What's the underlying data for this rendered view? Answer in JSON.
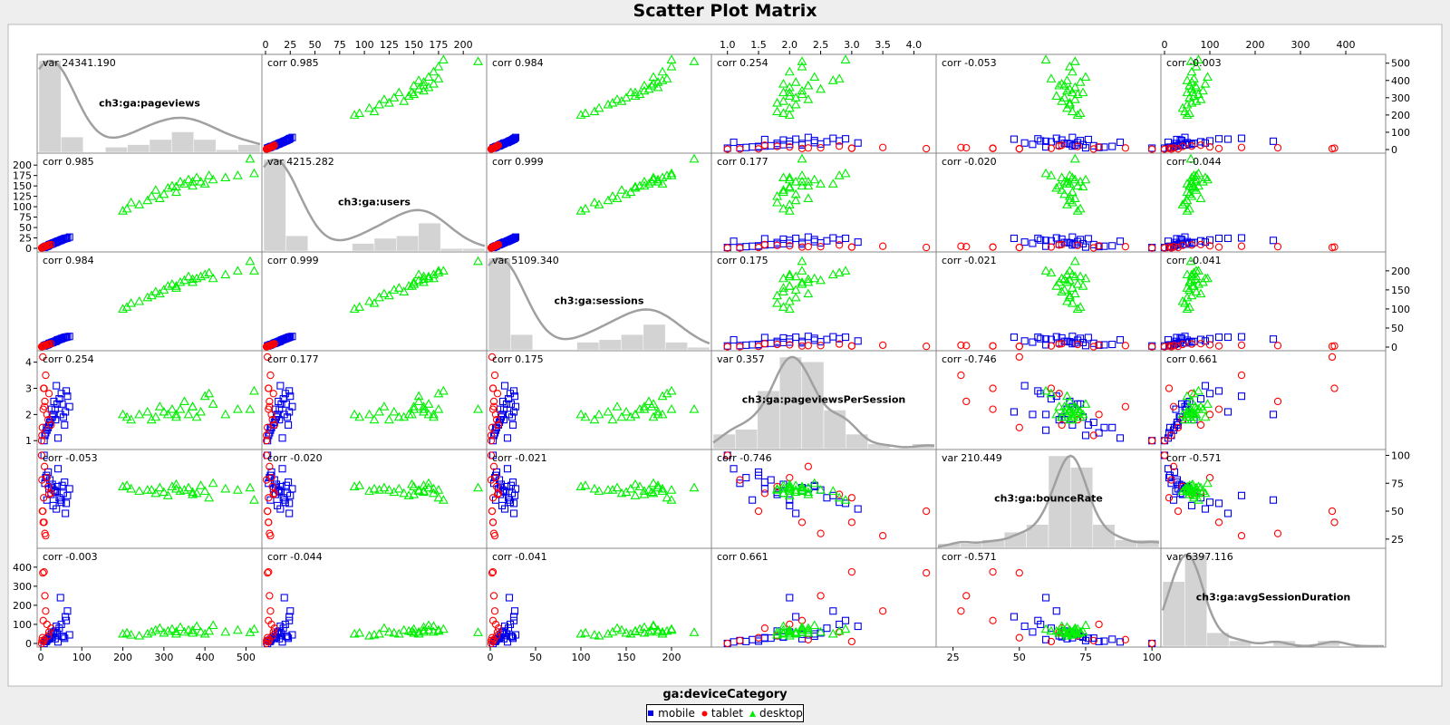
{
  "title": "Scatter Plot Matrix",
  "legend": {
    "title": "ga:deviceCategory",
    "items": [
      {
        "label": "mobile",
        "color": "#0000ee",
        "marker": "square"
      },
      {
        "label": "tablet",
        "color": "#ff0000",
        "marker": "circle"
      },
      {
        "label": "desktop",
        "color": "#00ee00",
        "marker": "triangle"
      }
    ]
  },
  "chart_data": {
    "type": "scatter",
    "title": "Scatter Plot Matrix",
    "variables": [
      {
        "name": "ch3:ga:pageviews",
        "range": [
          0,
          530
        ],
        "ticks": [
          0,
          100,
          200,
          300,
          400,
          500
        ],
        "var": "var 24341.190"
      },
      {
        "name": "ch3:ga:users",
        "range": [
          0,
          220
        ],
        "ticks": [
          0,
          25,
          50,
          75,
          100,
          125,
          150,
          175,
          200
        ],
        "var": "var 4215.282"
      },
      {
        "name": "ch3:ga:sessions",
        "range": [
          0,
          240
        ],
        "ticks": [
          0,
          50,
          100,
          150,
          200
        ],
        "var": "var 5109.340"
      },
      {
        "name": "ch3:ga:pageviewsPerSession",
        "range": [
          0.8,
          4.3
        ],
        "ticks": [
          1,
          2,
          3,
          4
        ],
        "ticks_top": [
          "1.0",
          "1.5",
          "2.0",
          "2.5",
          "3.0",
          "3.5",
          "4.0"
        ],
        "var": "var 0.357"
      },
      {
        "name": "ch3:ga:bounceRate",
        "range": [
          20,
          102
        ],
        "ticks": [
          25,
          50,
          75,
          100
        ],
        "var": "var 210.449"
      },
      {
        "name": "ch3:ga:avgSessionDuration",
        "range": [
          0,
          480
        ],
        "ticks": [
          0,
          100,
          200,
          300,
          400
        ],
        "var": "var 6397.116"
      }
    ],
    "correlations": [
      [
        "",
        "corr 0.985",
        "corr 0.984",
        "corr 0.254",
        "corr -0.053",
        "corr -0.003"
      ],
      [
        "corr 0.985",
        "",
        "corr 0.999",
        "corr 0.177",
        "corr -0.020",
        "corr -0.044"
      ],
      [
        "corr 0.984",
        "corr 0.999",
        "",
        "corr 0.175",
        "corr -0.021",
        "corr -0.041"
      ],
      [
        "corr 0.254",
        "corr 0.177",
        "corr 0.175",
        "",
        "corr -0.746",
        "corr 0.661"
      ],
      [
        "corr -0.053",
        "corr -0.020",
        "corr -0.021",
        "corr -0.746",
        "",
        "corr -0.571"
      ],
      [
        "corr -0.003",
        "corr -0.044",
        "corr -0.041",
        "corr 0.661",
        "corr -0.571",
        ""
      ]
    ],
    "groups": [
      {
        "name": "mobile",
        "color": "#0000ee",
        "marker": "square",
        "points": [
          [
            15,
            5,
            6,
            1.4,
            60,
            20
          ],
          [
            20,
            8,
            9,
            1.6,
            70,
            30
          ],
          [
            25,
            10,
            11,
            1.8,
            65,
            40
          ],
          [
            30,
            12,
            13,
            2.0,
            55,
            60
          ],
          [
            35,
            14,
            15,
            2.2,
            68,
            25
          ],
          [
            40,
            16,
            18,
            2.4,
            72,
            50
          ],
          [
            45,
            18,
            20,
            2.6,
            62,
            80
          ],
          [
            50,
            20,
            22,
            2.8,
            58,
            100
          ],
          [
            55,
            22,
            24,
            1.9,
            66,
            35
          ],
          [
            60,
            24,
            26,
            2.1,
            48,
            140
          ],
          [
            65,
            25,
            27,
            2.7,
            64,
            170
          ],
          [
            70,
            27,
            28,
            2.3,
            70,
            45
          ],
          [
            10,
            3,
            4,
            1.2,
            75,
            15
          ],
          [
            12,
            4,
            5,
            1.3,
            80,
            10
          ],
          [
            18,
            6,
            7,
            1.5,
            85,
            22
          ],
          [
            22,
            9,
            10,
            1.7,
            78,
            28
          ],
          [
            28,
            11,
            12,
            1.9,
            74,
            33
          ],
          [
            32,
            13,
            14,
            2.5,
            69,
            55
          ],
          [
            38,
            15,
            16,
            3.1,
            52,
            90
          ],
          [
            42,
            17,
            19,
            1.1,
            88,
            8
          ],
          [
            8,
            2,
            3,
            1.0,
            100,
            0
          ],
          [
            48,
            19,
            21,
            2.0,
            60,
            240
          ],
          [
            14,
            5,
            6,
            1.5,
            82,
            12
          ],
          [
            26,
            10,
            11,
            2.2,
            71,
            48
          ],
          [
            36,
            14,
            15,
            1.8,
            67,
            65
          ],
          [
            52,
            21,
            23,
            2.4,
            73,
            38
          ],
          [
            58,
            23,
            25,
            1.6,
            76,
            27
          ],
          [
            62,
            24,
            26,
            2.9,
            57,
            120
          ]
        ]
      },
      {
        "name": "tablet",
        "color": "#ff0000",
        "marker": "circle",
        "points": [
          [
            2,
            1,
            1,
            1.0,
            100,
            0
          ],
          [
            5,
            2,
            2,
            4.2,
            50,
            370
          ],
          [
            8,
            3,
            3,
            3.0,
            40,
            375
          ],
          [
            10,
            4,
            4,
            2.5,
            30,
            250
          ],
          [
            12,
            5,
            5,
            3.5,
            28,
            170
          ],
          [
            15,
            6,
            6,
            2.0,
            80,
            100
          ],
          [
            18,
            7,
            7,
            1.8,
            72,
            40
          ],
          [
            20,
            8,
            8,
            2.8,
            65,
            60
          ],
          [
            4,
            2,
            2,
            1.5,
            50,
            30
          ],
          [
            6,
            3,
            3,
            2.2,
            40,
            120
          ],
          [
            3,
            1,
            1,
            1.2,
            78,
            15
          ],
          [
            25,
            9,
            9,
            1.6,
            66,
            80
          ],
          [
            7,
            3,
            3,
            3.0,
            62,
            10
          ],
          [
            9,
            4,
            4,
            2.3,
            90,
            20
          ]
        ]
      },
      {
        "name": "desktop",
        "color": "#00ee00",
        "marker": "triangle",
        "points": [
          [
            200,
            90,
            100,
            2.0,
            72,
            50
          ],
          [
            210,
            95,
            105,
            1.9,
            73,
            55
          ],
          [
            220,
            110,
            115,
            1.8,
            70,
            45
          ],
          [
            240,
            105,
            120,
            2.0,
            68,
            40
          ],
          [
            270,
            125,
            135,
            1.8,
            69,
            60
          ],
          [
            280,
            140,
            145,
            1.9,
            66,
            70
          ],
          [
            290,
            120,
            140,
            2.3,
            71,
            80
          ],
          [
            300,
            130,
            150,
            2.1,
            67,
            55
          ],
          [
            310,
            145,
            160,
            2.0,
            64,
            65
          ],
          [
            320,
            150,
            165,
            2.2,
            72,
            75
          ],
          [
            330,
            135,
            155,
            1.9,
            70,
            50
          ],
          [
            340,
            160,
            170,
            2.2,
            68,
            85
          ],
          [
            350,
            155,
            175,
            2.5,
            69,
            60
          ],
          [
            360,
            165,
            185,
            2.0,
            71,
            70
          ],
          [
            370,
            150,
            170,
            2.3,
            65,
            55
          ],
          [
            380,
            170,
            180,
            1.9,
            66,
            90
          ],
          [
            390,
            160,
            185,
            2.1,
            73,
            60
          ],
          [
            400,
            155,
            190,
            2.7,
            68,
            50
          ],
          [
            410,
            175,
            195,
            2.8,
            62,
            65
          ],
          [
            420,
            165,
            180,
            2.4,
            75,
            95
          ],
          [
            450,
            170,
            190,
            2.0,
            70,
            60
          ],
          [
            480,
            175,
            200,
            2.2,
            69,
            70
          ],
          [
            510,
            215,
            225,
            2.2,
            71,
            58
          ],
          [
            520,
            180,
            200,
            2.9,
            60,
            75
          ],
          [
            330,
            148,
            160,
            2.0,
            74,
            62
          ],
          [
            260,
            115,
            130,
            2.1,
            69,
            50
          ],
          [
            370,
            160,
            178,
            2.3,
            67,
            68
          ]
        ]
      }
    ]
  }
}
